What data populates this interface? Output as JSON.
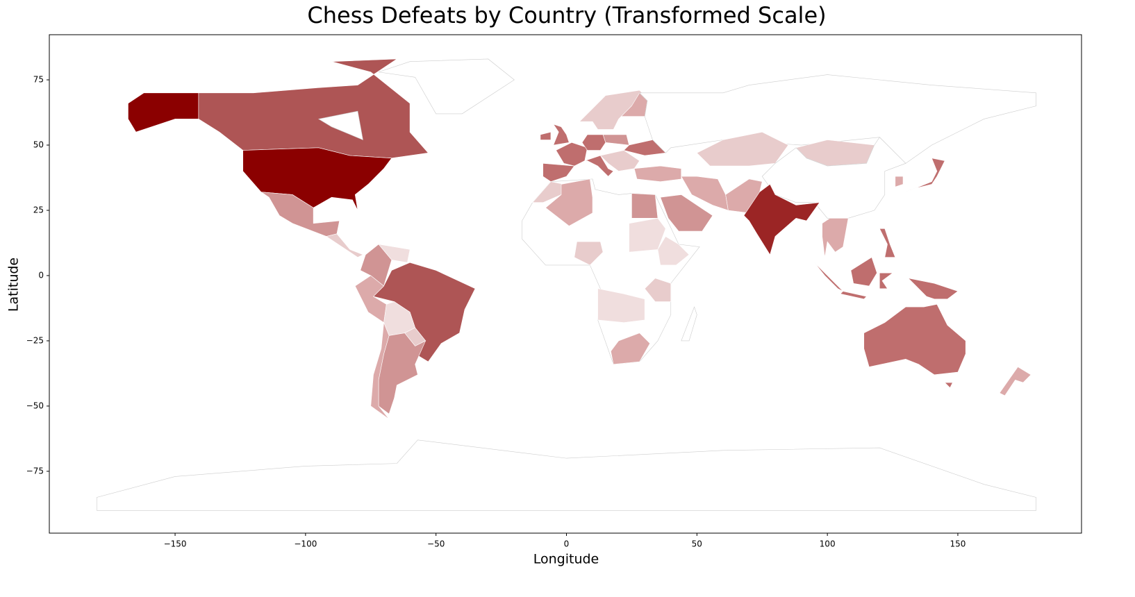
{
  "chart_data": {
    "type": "map",
    "title": "Chess Defeats by Country (Transformed Scale)",
    "x_label": "Longitude",
    "y_label": "Latitude",
    "xlim": [
      -198.2,
      197.4
    ],
    "ylim": [
      -98.7,
      92.3
    ],
    "xticks": [
      {
        "value": -150,
        "label": "−150"
      },
      {
        "value": -100,
        "label": "−100"
      },
      {
        "value": -50,
        "label": "−50"
      },
      0,
      50,
      100,
      150
    ],
    "yticks": [
      {
        "value": -75,
        "label": "−75"
      },
      {
        "value": -50,
        "label": "−50"
      },
      {
        "value": -25,
        "label": "−25"
      },
      0,
      25,
      50,
      75
    ]
  }
}
